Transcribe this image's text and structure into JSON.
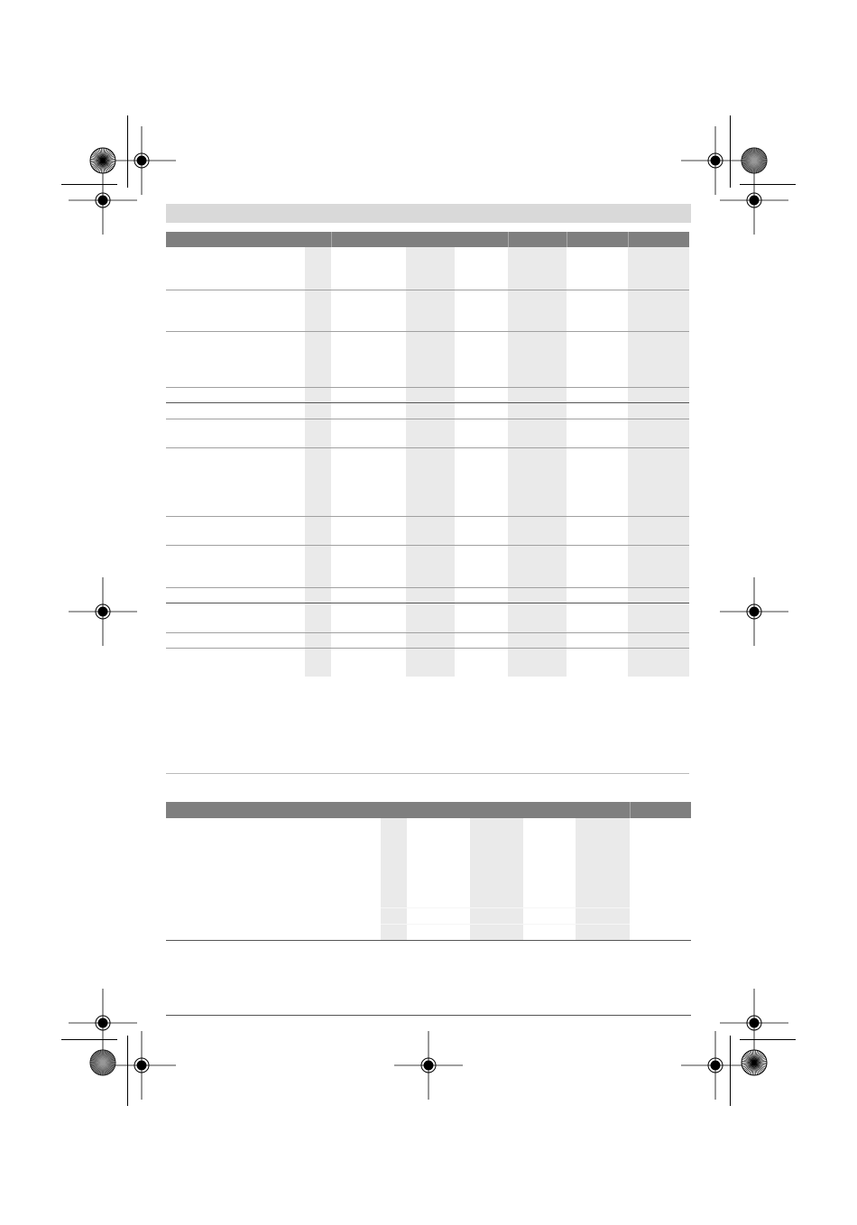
{
  "colors": {
    "header_band": "#d9d9d9",
    "table_header": "#7f7f7f",
    "column_shade": "#eaeaea",
    "rule": "#555555"
  },
  "registration_marks": {
    "crosshair_icon": "crosshair-target-icon",
    "starburst_icon": "starburst-color-bar-icon"
  }
}
